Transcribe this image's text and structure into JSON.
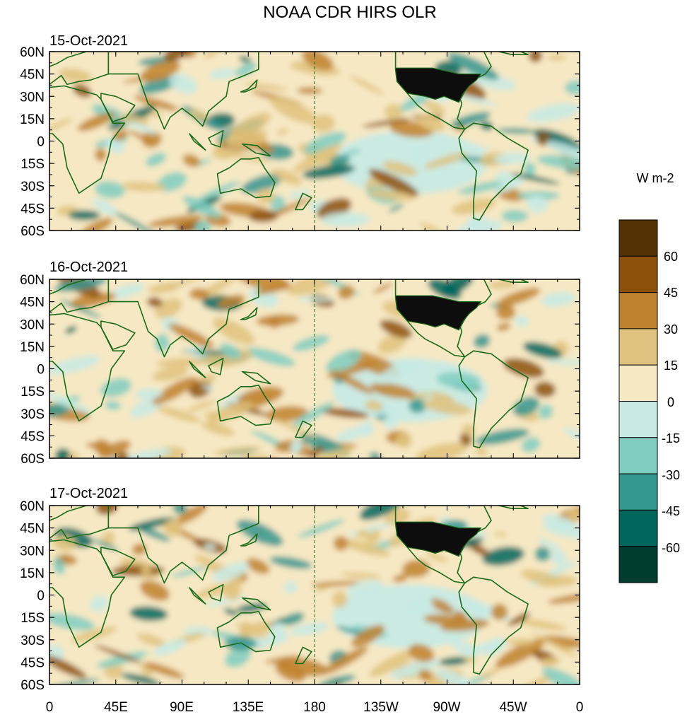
{
  "figure": {
    "title": "NOAA CDR HIRS OLR",
    "panels": [
      {
        "date": "15-Oct-2021"
      },
      {
        "date": "16-Oct-2021"
      },
      {
        "date": "17-Oct-2021"
      }
    ],
    "lat_ticks": [
      "60N",
      "45N",
      "30N",
      "15N",
      "0",
      "15S",
      "30S",
      "45S",
      "60S"
    ],
    "lon_ticks": [
      "0",
      "45E",
      "90E",
      "135E",
      "180",
      "135W",
      "90W",
      "45W",
      "0"
    ],
    "colorbar": {
      "units": "W m-2",
      "labels": [
        "60",
        "45",
        "30",
        "15",
        "0",
        "-15",
        "-30",
        "-45",
        "-60"
      ],
      "colors": [
        "#543005",
        "#8c510a",
        "#bf812d",
        "#dfc27d",
        "#f6e8c3",
        "#c7eae5",
        "#80cdc1",
        "#35978f",
        "#01665e",
        "#003c30"
      ]
    },
    "colors": {
      "coastline": "#1a6b1a",
      "land_mask_usa": "#0d0d0d"
    }
  }
}
